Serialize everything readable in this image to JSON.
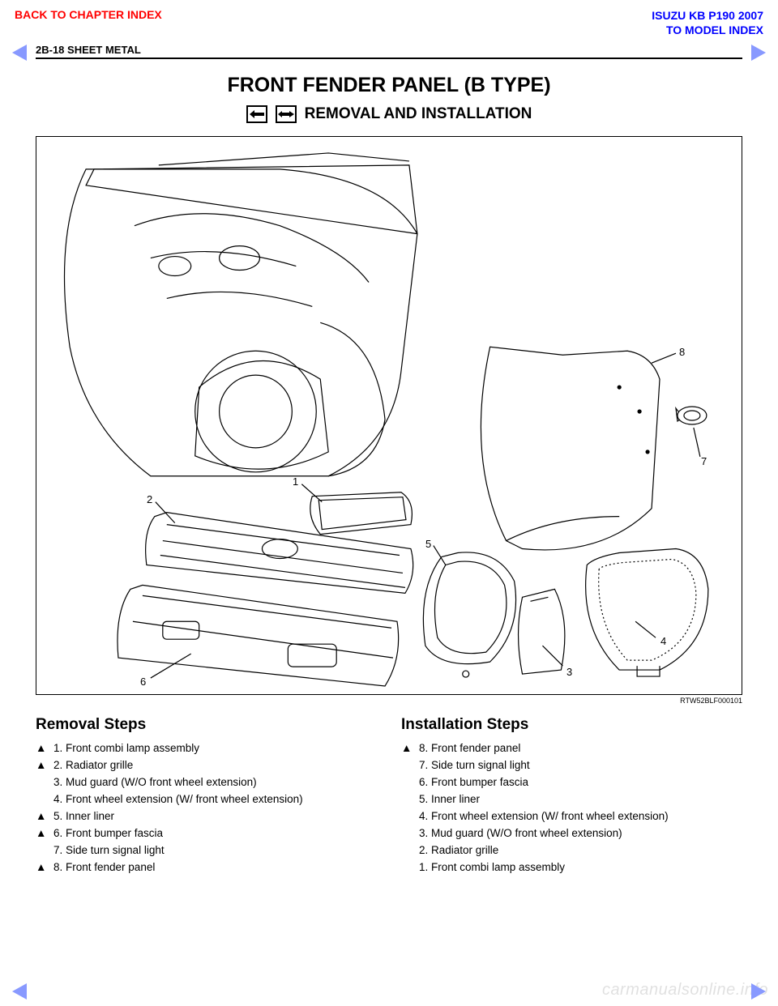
{
  "colors": {
    "link_red": "#ff0000",
    "link_blue": "#0000ff",
    "arrow_fill": "#8899ff",
    "text": "#000000",
    "background": "#ffffff"
  },
  "top_nav": {
    "back": "BACK TO CHAPTER INDEX",
    "model": "ISUZU KB P190 2007",
    "to_model": "TO MODEL INDEX"
  },
  "header": {
    "page_ref": "2B-18  SHEET METAL"
  },
  "title": "FRONT FENDER PANEL (B TYPE)",
  "subtitle": "REMOVAL AND INSTALLATION",
  "diagram": {
    "callouts": [
      "1",
      "2",
      "3",
      "4",
      "5",
      "6",
      "7",
      "8"
    ],
    "figure_ref": "RTW52BLF000101"
  },
  "removal": {
    "title": "Removal Steps",
    "steps": [
      {
        "tri": true,
        "text": "1. Front combi lamp assembly"
      },
      {
        "tri": true,
        "text": "2. Radiator grille"
      },
      {
        "tri": false,
        "text": "3. Mud guard (W/O front wheel extension)"
      },
      {
        "tri": false,
        "text": "4. Front wheel extension (W/ front wheel extension)"
      },
      {
        "tri": true,
        "text": "5. Inner liner"
      },
      {
        "tri": true,
        "text": "6. Front bumper fascia"
      },
      {
        "tri": false,
        "text": "7. Side turn signal light"
      },
      {
        "tri": true,
        "text": "8. Front fender panel"
      }
    ]
  },
  "installation": {
    "title": "Installation Steps",
    "steps": [
      {
        "tri": true,
        "text": "8. Front fender panel"
      },
      {
        "tri": false,
        "text": "7. Side turn signal light"
      },
      {
        "tri": false,
        "text": "6. Front bumper fascia"
      },
      {
        "tri": false,
        "text": "5. Inner liner"
      },
      {
        "tri": false,
        "text": "4. Front wheel extension (W/ front wheel extension)"
      },
      {
        "tri": false,
        "text": "3. Mud guard (W/O front wheel extension)"
      },
      {
        "tri": false,
        "text": "2. Radiator grille"
      },
      {
        "tri": false,
        "text": "1. Front combi lamp assembly"
      }
    ]
  },
  "watermark": "carmanualsonline.info"
}
